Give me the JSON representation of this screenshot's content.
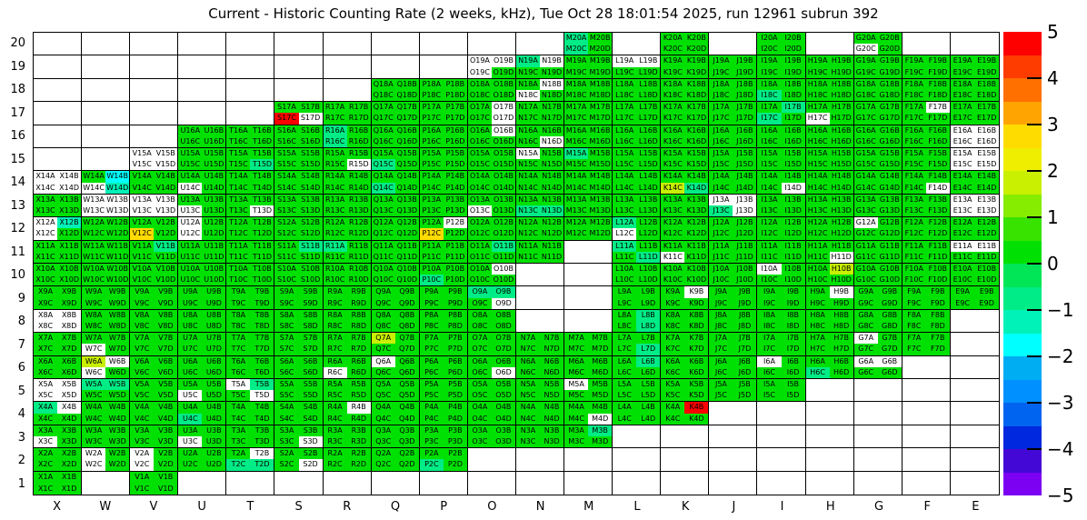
{
  "title": "Current - Historic Counting Rate (2 weeks, kHz), Tue Oct 28 18:01:54 2025, run 12961 subrun 392",
  "chart_data": {
    "type": "heatmap",
    "title": "Current - Historic Counting Rate (2 weeks, kHz), Tue Oct 28 18:01:54 2025, run 12961 subrun 392",
    "x_categories": [
      "X",
      "W",
      "V",
      "U",
      "T",
      "S",
      "R",
      "Q",
      "P",
      "O",
      "N",
      "M",
      "L",
      "K",
      "J",
      "I",
      "H",
      "G",
      "F",
      "E"
    ],
    "y_categories": [
      "20",
      "19",
      "18",
      "17",
      "16",
      "15",
      "14",
      "13",
      "12",
      "11",
      "10",
      "9",
      "8",
      "7",
      "6",
      "5",
      "4",
      "3",
      "2",
      "1"
    ],
    "quadrant_order": [
      "A",
      "B",
      "C",
      "D"
    ],
    "grid_on": true,
    "legend_position": "right-colorbar",
    "colorbar": {
      "min": -5,
      "max": 5,
      "tick_labels": [
        "5",
        "4",
        "3",
        "2",
        "1",
        "0",
        "−1",
        "−2",
        "−3",
        "−4",
        "−5"
      ],
      "segment_colors_top_to_bottom": [
        "#FF0000",
        "#FF3C00",
        "#FF7000",
        "#FFA400",
        "#FFDC00",
        "#F0EE00",
        "#C8F000",
        "#86EC00",
        "#38E300",
        "#00E103",
        "#00E656",
        "#00EC86",
        "#00F2B8",
        "#00FFFF",
        "#00ACF2",
        "#0090FF",
        "#0064F0",
        "#0028DE",
        "#4408D6",
        "#7C00F2"
      ]
    },
    "palette": {
      "g": "#00E103",
      "t": "#00EC86",
      "T": "#00F2B8",
      "c": "#00FFFF",
      "Y": "#C8F000",
      "y": "#FFDC00",
      "r": "#FF0000",
      "w": "#FFFFFF"
    },
    "palette_value_estimate_khz": {
      "g": 0.25,
      "t": -0.75,
      "T": -1.25,
      "c": -1.75,
      "Y": 1.75,
      "y": 2.75,
      "r": 5,
      "w": null
    },
    "cells": {
      "20": {
        "M": "tgtg",
        "K": "gggg",
        "I": "gggg",
        "G": "ggwg"
      },
      "19": {
        "O": "wwwg",
        "N": "twgg",
        "M": "gggg",
        "L": "wwgg",
        "K": "gggg",
        "J": "gggg",
        "I": "gggg",
        "H": "gggg",
        "G": "gggg",
        "F": "gggg",
        "E": "gggg"
      },
      "18": {
        "Q": "gggg",
        "P": "gggg",
        "O": "gggg",
        "N": "gwwg",
        "M": "gggg",
        "L": "gggg",
        "K": "gggg",
        "J": "gggg",
        "I": "ggtg",
        "H": "gggg",
        "G": "gggg",
        "F": "gggg",
        "E": "gggg"
      },
      "17": {
        "S": "ggrw",
        "R": "gggg",
        "Q": "gggg",
        "P": "gggg",
        "O": "gwgw",
        "N": "gggg",
        "M": "gggg",
        "L": "gggg",
        "K": "gggg",
        "J": "gggg",
        "I": "gttg",
        "H": "ggwg",
        "G": "gggg",
        "F": "gwgg",
        "E": "gggg"
      },
      "16": {
        "U": "gggg",
        "T": "gggg",
        "S": "gggg",
        "R": "tgtg",
        "Q": "gggg",
        "P": "gggg",
        "O": "gwgg",
        "N": "gggw",
        "M": "gggg",
        "L": "gggg",
        "K": "gggg",
        "J": "gggg",
        "I": "gggg",
        "H": "gggg",
        "G": "gggg",
        "F": "gggg",
        "E": "wwww"
      },
      "15": {
        "V": "wwww",
        "U": "gggg",
        "T": "gggt",
        "S": "gggg",
        "R": "gggw",
        "Q": "ggtg",
        "P": "gggg",
        "O": "gggg",
        "N": "wggg",
        "M": "tggg",
        "L": "gggg",
        "K": "gggg",
        "J": "gggg",
        "I": "gggg",
        "H": "gggg",
        "G": "gggg",
        "F": "gggg",
        "E": "wwww"
      },
      "14": {
        "X": "wwww",
        "W": "gcwT",
        "V": "gggg",
        "U": "ggwg",
        "T": "gggg",
        "S": "gggg",
        "R": "gggg",
        "Q": "ggtg",
        "P": "gggg",
        "O": "gggg",
        "N": "gggg",
        "M": "gggg",
        "L": "gggg",
        "K": "ggYt",
        "J": "gggg",
        "I": "gggw",
        "H": "gggg",
        "G": "gggg",
        "F": "gggw",
        "E": "gggg"
      },
      "13": {
        "X": "gggg",
        "W": "wwww",
        "V": "wwww",
        "U": "ggwg",
        "T": "gggw",
        "S": "gggg",
        "R": "gggg",
        "Q": "gggg",
        "P": "gggg",
        "O": "ggwg",
        "N": "ggtt",
        "M": "gggg",
        "L": "gggg",
        "K": "gggg",
        "J": "wwtw",
        "I": "gggg",
        "H": "gggg",
        "G": "gggg",
        "F": "gggg",
        "E": "wwww"
      },
      "12": {
        "X": "wTwg",
        "W": "gggg",
        "V": "ggyg",
        "U": "wgwg",
        "T": "gggg",
        "S": "gggg",
        "R": "gggg",
        "Q": "gggg",
        "P": "gwyg",
        "O": "gggg",
        "N": "gggg",
        "M": "gggg",
        "L": "tgwg",
        "K": "gggg",
        "J": "gggg",
        "I": "gggg",
        "H": "gggg",
        "G": "wggg",
        "F": "gggg",
        "E": "gggg"
      },
      "11": {
        "X": "gggg",
        "W": "gggg",
        "V": "gtgg",
        "U": "gggg",
        "T": "gggg",
        "S": "gtgg",
        "R": "tggg",
        "Q": "gggg",
        "P": "gggg",
        "O": "gtgg",
        "N": "gggg",
        "L": "tggt",
        "K": "ggwg",
        "J": "gggg",
        "I": "gggg",
        "H": "gggw",
        "G": "gggg",
        "F": "gggg",
        "E": "wwgg"
      },
      "10": {
        "X": "gggg",
        "W": "gggg",
        "V": "gggg",
        "U": "gggg",
        "T": "gggg",
        "S": "gggg",
        "R": "gggg",
        "Q": "gggg",
        "P": "ggtg",
        "O": "gwgg",
        "L": "gggg",
        "K": "gggg",
        "J": "gggg",
        "I": "wggg",
        "H": "gYgg",
        "G": "gggg",
        "F": "gggg",
        "E": "gggg"
      },
      "9": {
        "X": "gggg",
        "W": "gggg",
        "V": "gggg",
        "U": "gggg",
        "T": "gggg",
        "S": "gggg",
        "R": "gggg",
        "Q": "gggg",
        "P": "gggg",
        "O": "ttgw",
        "L": "gggg",
        "K": "gwgg",
        "J": "gggg",
        "I": "gggg",
        "H": "gwgg",
        "G": "gggg",
        "F": "gggg",
        "E": "gggg"
      },
      "8": {
        "X": "wwww",
        "W": "gggg",
        "V": "gggg",
        "U": "gggg",
        "T": "gggg",
        "S": "gggg",
        "R": "gggg",
        "Q": "gggg",
        "P": "gggg",
        "O": "gggg",
        "L": "gtgt",
        "K": "gggg",
        "J": "gggg",
        "I": "gggg",
        "H": "gggg",
        "G": "gggg",
        "F": "gggg"
      },
      "7": {
        "X": "gggg",
        "W": "ggwg",
        "V": "gggg",
        "U": "gggg",
        "T": "gggg",
        "S": "gggg",
        "R": "gggg",
        "Q": "Yggg",
        "P": "gggg",
        "O": "gggg",
        "N": "gggg",
        "M": "gggg",
        "L": "gggt",
        "K": "gggg",
        "J": "gggg",
        "I": "gggg",
        "H": "gggg",
        "G": "wggg",
        "F": "gggg"
      },
      "6": {
        "X": "gggg",
        "W": "Ywwg",
        "V": "gggg",
        "U": "gggg",
        "T": "gggg",
        "S": "gggg",
        "R": "ggwg",
        "Q": "wggg",
        "P": "gggg",
        "O": "gggw",
        "N": "gggg",
        "M": "gggg",
        "L": "gtgg",
        "K": "gggg",
        "J": "gggg",
        "I": "wggg",
        "H": "ggtg",
        "G": "wwgg"
      },
      "5": {
        "X": "wwww",
        "W": "ttgg",
        "V": "gggg",
        "U": "ggwg",
        "T": "wtgw",
        "S": "gggg",
        "R": "gggg",
        "Q": "gggg",
        "P": "gggg",
        "O": "gggg",
        "N": "gggg",
        "M": "wggg",
        "L": "gggg",
        "K": "gggg",
        "J": "gggg",
        "I": "gggg"
      },
      "4": {
        "X": "twgg",
        "W": "gggg",
        "V": "gggg",
        "U": "ggtg",
        "T": "gggg",
        "S": "gggg",
        "R": "gwgg",
        "Q": "gggg",
        "P": "gggg",
        "O": "gggg",
        "N": "gggg",
        "M": "gggw",
        "L": "gggg",
        "K": "grgg"
      },
      "3": {
        "X": "ggwg",
        "W": "gggg",
        "V": "gggg",
        "U": "ggwg",
        "T": "gggg",
        "S": "gggw",
        "R": "gggg",
        "Q": "gggg",
        "P": "gggg",
        "O": "gggg",
        "N": "gggg",
        "M": "gtgg"
      },
      "2": {
        "X": "gggg",
        "W": "wgwg",
        "V": "wgwg",
        "U": "gggg",
        "T": "gwtt",
        "S": "gggw",
        "R": "gggg",
        "Q": "gggg",
        "P": "ggtg"
      },
      "1": {
        "X": "gggg",
        "V": "gggg"
      }
    }
  }
}
